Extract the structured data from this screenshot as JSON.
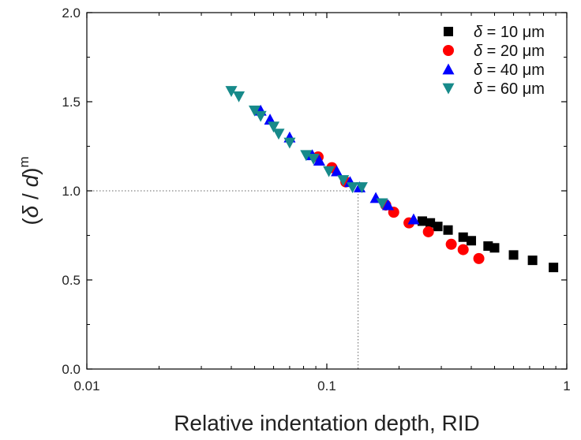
{
  "chart_data": {
    "type": "scatter",
    "xlabel": "Relative indentation depth, RID",
    "ylabel": {
      "open": "(",
      "delta": "δ",
      "slash": " / ",
      "d": "d",
      "close": ")",
      "exponent": "m"
    },
    "xscale": "log",
    "xlim": [
      0.01,
      1
    ],
    "ylim": [
      0.0,
      2.0
    ],
    "x_ticks": [
      0.01,
      0.1,
      1
    ],
    "x_tick_labels": [
      "0.01",
      "0.1",
      "1"
    ],
    "y_ticks": [
      0.0,
      0.5,
      1.0,
      1.5,
      2.0
    ],
    "y_tick_labels": [
      "0.0",
      "0.5",
      "1.0",
      "1.5",
      "2.0"
    ],
    "grid": false,
    "legend_position": "top-right",
    "reference_lines": {
      "x": 0.135,
      "y": 1.0,
      "style": "dotted"
    },
    "series": [
      {
        "name": "δ = 10 μm",
        "name_parts": {
          "symbol": "δ",
          "rest": " = 10 μm"
        },
        "marker": "square",
        "color": "#000000",
        "points": [
          [
            0.25,
            0.83
          ],
          [
            0.27,
            0.82
          ],
          [
            0.29,
            0.8
          ],
          [
            0.32,
            0.78
          ],
          [
            0.37,
            0.74
          ],
          [
            0.4,
            0.72
          ],
          [
            0.47,
            0.69
          ],
          [
            0.5,
            0.68
          ],
          [
            0.6,
            0.64
          ],
          [
            0.72,
            0.61
          ],
          [
            0.88,
            0.57
          ]
        ]
      },
      {
        "name": "δ = 20 μm",
        "name_parts": {
          "symbol": "δ",
          "rest": " = 20 μm"
        },
        "marker": "circle",
        "color": "#ff0000",
        "points": [
          [
            0.092,
            1.19
          ],
          [
            0.105,
            1.13
          ],
          [
            0.12,
            1.05
          ],
          [
            0.176,
            0.92
          ],
          [
            0.19,
            0.88
          ],
          [
            0.22,
            0.82
          ],
          [
            0.265,
            0.77
          ],
          [
            0.33,
            0.7
          ],
          [
            0.37,
            0.67
          ],
          [
            0.43,
            0.62
          ]
        ]
      },
      {
        "name": "δ = 40 μm",
        "name_parts": {
          "symbol": "δ",
          "rest": " = 40 μm"
        },
        "marker": "triangle-up",
        "color": "#0000ff",
        "points": [
          [
            0.053,
            1.45
          ],
          [
            0.058,
            1.4
          ],
          [
            0.07,
            1.3
          ],
          [
            0.087,
            1.2
          ],
          [
            0.093,
            1.17
          ],
          [
            0.11,
            1.11
          ],
          [
            0.125,
            1.05
          ],
          [
            0.137,
            1.02
          ],
          [
            0.16,
            0.96
          ],
          [
            0.18,
            0.92
          ],
          [
            0.23,
            0.84
          ]
        ]
      },
      {
        "name": "δ = 60 μm",
        "name_parts": {
          "symbol": "δ",
          "rest": " = 60 μm"
        },
        "marker": "triangle-down",
        "color": "#178a8a",
        "points": [
          [
            0.04,
            1.56
          ],
          [
            0.043,
            1.53
          ],
          [
            0.05,
            1.45
          ],
          [
            0.053,
            1.42
          ],
          [
            0.06,
            1.36
          ],
          [
            0.063,
            1.32
          ],
          [
            0.07,
            1.27
          ],
          [
            0.082,
            1.2
          ],
          [
            0.088,
            1.18
          ],
          [
            0.102,
            1.11
          ],
          [
            0.117,
            1.06
          ],
          [
            0.128,
            1.02
          ],
          [
            0.14,
            1.02
          ],
          [
            0.17,
            0.93
          ]
        ]
      }
    ]
  }
}
